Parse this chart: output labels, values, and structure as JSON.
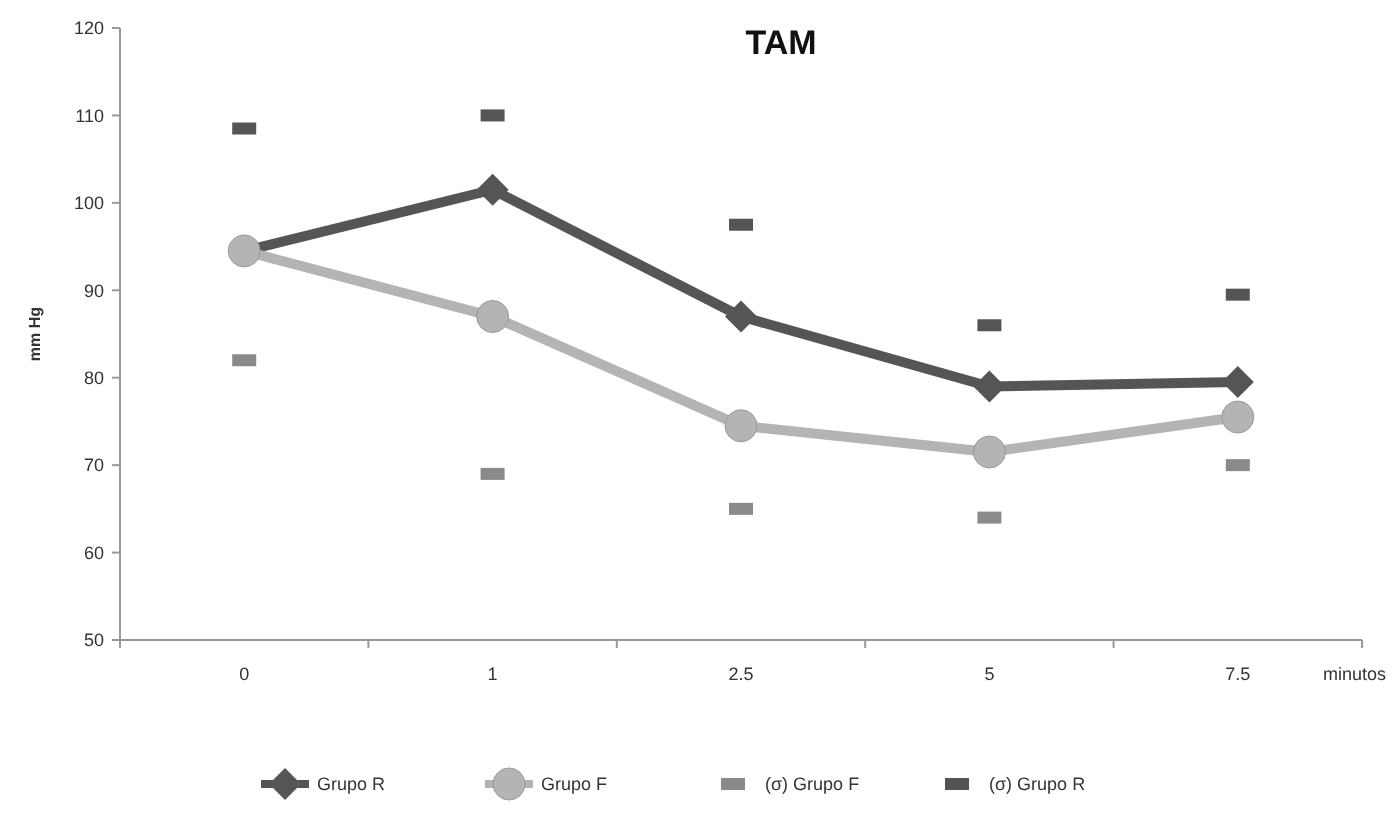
{
  "chart_data": {
    "type": "line",
    "title": "TAM",
    "ylabel": "mm Hg",
    "xlabel": "minutos",
    "categories": [
      "0",
      "1",
      "2.5",
      "5",
      "7.5"
    ],
    "series": [
      {
        "name": "Grupo  R",
        "color": "#555555",
        "marker": "diamond",
        "values": [
          94.5,
          101.5,
          87,
          79,
          79.5
        ]
      },
      {
        "name": "Grupo  F",
        "color": "#b4b4b4",
        "marker": "circle",
        "values": [
          94.5,
          87,
          74.5,
          71.5,
          75.5
        ]
      },
      {
        "name": "(σ) Grupo F",
        "type": "scatter",
        "color": "#8a8a8a",
        "marker": "square",
        "values": [
          82,
          69,
          65,
          64,
          70
        ]
      },
      {
        "name": "(σ) Grupo R",
        "type": "scatter",
        "color": "#555555",
        "marker": "square",
        "values": [
          108.5,
          110,
          97.5,
          86,
          89.5
        ]
      }
    ],
    "ylim": [
      50,
      120
    ],
    "yticks": [
      50,
      60,
      70,
      80,
      90,
      100,
      110,
      120
    ],
    "grid": false,
    "legend": "bottom",
    "line_style": "solid"
  }
}
